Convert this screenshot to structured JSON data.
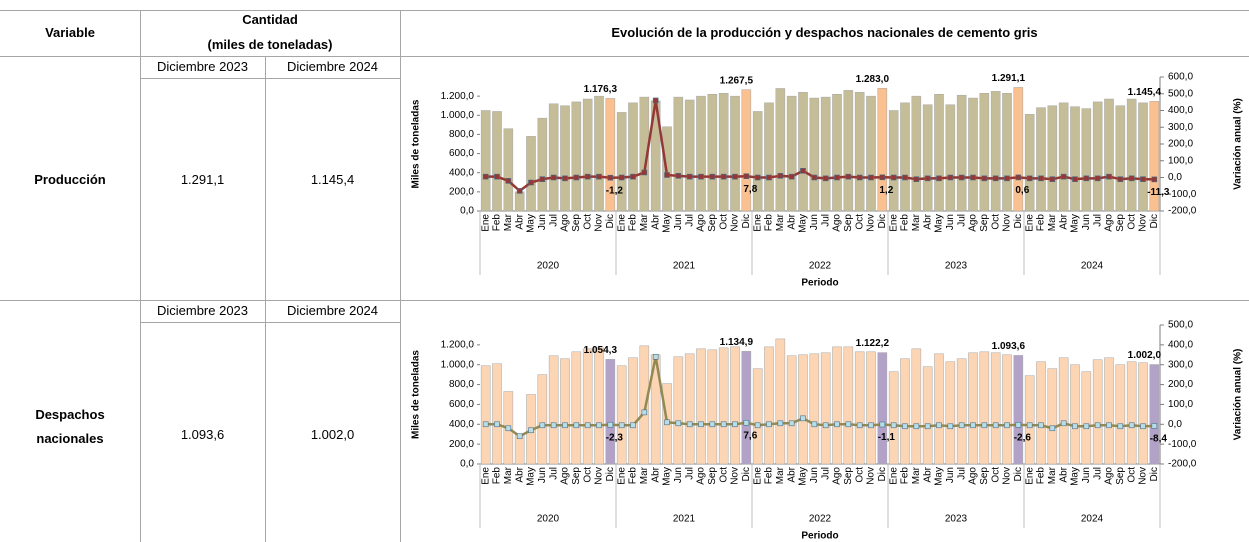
{
  "table": {
    "headers": {
      "variable": "Variable",
      "quantity": "Cantidad",
      "quantity_unit": "(miles de toneladas)",
      "chart": "Evolución de la producción y despachos nacionales de cemento gris"
    },
    "rows": [
      {
        "variable": "Producción",
        "period1": "Diciembre 2023",
        "period2": "Diciembre 2024",
        "value1": "1.291,1",
        "value2": "1.145,4"
      },
      {
        "variable": "Despachos nacionales",
        "period1": "Diciembre 2023",
        "period2": "Diciembre 2024",
        "value1": "1.093,6",
        "value2": "1.002,0"
      }
    ]
  },
  "chart_data": [
    {
      "type": "combo",
      "categories": [
        "Ene",
        "Feb",
        "Mar",
        "Abr",
        "May",
        "Jun",
        "Jul",
        "Ago",
        "Sep",
        "Oct",
        "Nov",
        "Dic",
        "Ene",
        "Feb",
        "Mar",
        "Abr",
        "May",
        "Jun",
        "Jul",
        "Ago",
        "Sep",
        "Oct",
        "Nov",
        "Dic",
        "Ene",
        "Feb",
        "Mar",
        "Abr",
        "May",
        "Jun",
        "Jul",
        "Ago",
        "Sep",
        "Oct",
        "Nov",
        "Dic",
        "Ene",
        "Feb",
        "Mar",
        "Abr",
        "May",
        "Jun",
        "Jul",
        "Ago",
        "Sep",
        "Oct",
        "Nov",
        "Dic",
        "Ene",
        "Feb",
        "Mar",
        "Abr",
        "May",
        "Jun",
        "Jul",
        "Ago",
        "Sep",
        "Oct",
        "Nov",
        "Dic"
      ],
      "groups": [
        "2020",
        "2021",
        "2022",
        "2023",
        "2024"
      ],
      "xlabel": "Periodo",
      "ylabel": "Miles de toneladas",
      "y2label": "Variación anual (%)",
      "ylim": [
        0,
        1400
      ],
      "yticks": [
        {
          "value": 0,
          "label": "0,0"
        },
        {
          "value": 200,
          "label": "200,0"
        },
        {
          "value": 400,
          "label": "400,0"
        },
        {
          "value": 600,
          "label": "600,0"
        },
        {
          "value": 800,
          "label": "800,0"
        },
        {
          "value": 1000,
          "label": "1.000,0"
        },
        {
          "value": 1200,
          "label": "1.200,0"
        }
      ],
      "y2lim": [
        -200,
        600
      ],
      "y2ticks": [
        {
          "value": -200,
          "label": "-200,0"
        },
        {
          "value": -100,
          "label": "-100,0"
        },
        {
          "value": 0,
          "label": "0,0"
        },
        {
          "value": 100,
          "label": "100,0"
        },
        {
          "value": 200,
          "label": "200,0"
        },
        {
          "value": 300,
          "label": "300,0"
        },
        {
          "value": 400,
          "label": "400,0"
        },
        {
          "value": 500,
          "label": "500,0"
        },
        {
          "value": 600,
          "label": "600,0"
        }
      ],
      "series": [
        {
          "type": "bar",
          "color": "#c4bd97",
          "highlight_color": "#fac090",
          "values": [
            1050,
            1040,
            860,
            200,
            780,
            970,
            1120,
            1100,
            1140,
            1170,
            1200,
            1176.3,
            1030,
            1130,
            1190,
            1150,
            880,
            1190,
            1160,
            1200,
            1220,
            1230,
            1200,
            1267.5,
            1040,
            1130,
            1280,
            1200,
            1240,
            1180,
            1190,
            1220,
            1260,
            1240,
            1200,
            1283.0,
            1050,
            1130,
            1200,
            1110,
            1220,
            1110,
            1210,
            1180,
            1230,
            1250,
            1230,
            1291.1,
            1010,
            1080,
            1100,
            1130,
            1090,
            1070,
            1140,
            1170,
            1100,
            1170,
            1130,
            1145.4
          ],
          "value_labels": [
            null,
            null,
            null,
            null,
            null,
            null,
            null,
            null,
            null,
            null,
            null,
            "1.176,3",
            null,
            null,
            null,
            null,
            null,
            null,
            null,
            null,
            null,
            null,
            null,
            "1.267,5",
            null,
            null,
            null,
            null,
            null,
            null,
            null,
            null,
            null,
            null,
            null,
            "1.283,0",
            null,
            null,
            null,
            null,
            null,
            null,
            null,
            null,
            null,
            null,
            null,
            "1.291,1",
            null,
            null,
            null,
            null,
            null,
            null,
            null,
            null,
            null,
            null,
            null,
            "1.145,4"
          ]
        },
        {
          "type": "line",
          "axis": "y2",
          "color": "#953735",
          "marker_color": "#953735",
          "values": [
            5,
            5,
            -20,
            -80,
            -30,
            -10,
            0,
            -5,
            0,
            5,
            5,
            -1.2,
            0,
            5,
            30,
            460,
            15,
            10,
            5,
            5,
            5,
            5,
            5,
            7.8,
            0,
            0,
            10,
            5,
            40,
            0,
            -5,
            0,
            5,
            0,
            0,
            1.2,
            0,
            0,
            -10,
            -5,
            -5,
            0,
            0,
            0,
            -5,
            -5,
            -5,
            0.6,
            -5,
            -5,
            -10,
            5,
            -10,
            -5,
            -5,
            5,
            -10,
            -5,
            -10,
            -11.3
          ],
          "value_labels": [
            null,
            null,
            null,
            null,
            null,
            null,
            null,
            null,
            null,
            null,
            null,
            "-1,2",
            null,
            null,
            null,
            null,
            null,
            null,
            null,
            null,
            null,
            null,
            null,
            "7,8",
            null,
            null,
            null,
            null,
            null,
            null,
            null,
            null,
            null,
            null,
            null,
            "1,2",
            null,
            null,
            null,
            null,
            null,
            null,
            null,
            null,
            null,
            null,
            null,
            "0,6",
            null,
            null,
            null,
            null,
            null,
            null,
            null,
            null,
            null,
            null,
            null,
            "-11,3"
          ]
        }
      ]
    },
    {
      "type": "combo",
      "categories": [
        "Ene",
        "Feb",
        "Mar",
        "Abr",
        "May",
        "Jun",
        "Jul",
        "Ago",
        "Sep",
        "Oct",
        "Nov",
        "Dic",
        "Ene",
        "Feb",
        "Mar",
        "Abr",
        "May",
        "Jun",
        "Jul",
        "Ago",
        "Sep",
        "Oct",
        "Nov",
        "Dic",
        "Ene",
        "Feb",
        "Mar",
        "Abr",
        "May",
        "Jun",
        "Jul",
        "Ago",
        "Sep",
        "Oct",
        "Nov",
        "Dic",
        "Ene",
        "Feb",
        "Mar",
        "Abr",
        "May",
        "Jun",
        "Jul",
        "Ago",
        "Sep",
        "Oct",
        "Nov",
        "Dic",
        "Ene",
        "Feb",
        "Mar",
        "Abr",
        "May",
        "Jun",
        "Jul",
        "Ago",
        "Sep",
        "Oct",
        "Nov",
        "Dic"
      ],
      "groups": [
        "2020",
        "2021",
        "2022",
        "2023",
        "2024"
      ],
      "xlabel": "Periodo",
      "ylabel": "Miles de toneladas",
      "y2label": "Variación anual (%)",
      "ylim": [
        0,
        1400
      ],
      "yticks": [
        {
          "value": 0,
          "label": "0,0"
        },
        {
          "value": 200,
          "label": "200,0"
        },
        {
          "value": 400,
          "label": "400,0"
        },
        {
          "value": 600,
          "label": "600,0"
        },
        {
          "value": 800,
          "label": "800,0"
        },
        {
          "value": 1000,
          "label": "1.000,0"
        },
        {
          "value": 1200,
          "label": "1.200,0"
        }
      ],
      "y2lim": [
        -200,
        500
      ],
      "y2ticks": [
        {
          "value": -200,
          "label": "-200,0"
        },
        {
          "value": -100,
          "label": "-100,0"
        },
        {
          "value": 0,
          "label": "0,0"
        },
        {
          "value": 100,
          "label": "100,0"
        },
        {
          "value": 200,
          "label": "200,0"
        },
        {
          "value": 300,
          "label": "300,0"
        },
        {
          "value": 400,
          "label": "400,0"
        },
        {
          "value": 500,
          "label": "500,0"
        }
      ],
      "series": [
        {
          "type": "bar",
          "color": "#fcd5b5",
          "highlight_color": "#b3a2c7",
          "values": [
            990,
            1010,
            730,
            300,
            700,
            900,
            1090,
            1060,
            1130,
            1160,
            1170,
            1054.3,
            990,
            1070,
            1190,
            1100,
            810,
            1080,
            1110,
            1160,
            1150,
            1170,
            1180,
            1134.9,
            960,
            1180,
            1260,
            1090,
            1100,
            1110,
            1120,
            1180,
            1180,
            1130,
            1130,
            1122.2,
            930,
            1060,
            1160,
            980,
            1110,
            1030,
            1060,
            1120,
            1130,
            1120,
            1100,
            1093.6,
            890,
            1030,
            960,
            1070,
            1000,
            930,
            1050,
            1070,
            1000,
            1030,
            1020,
            1002.0
          ],
          "value_labels": [
            null,
            null,
            null,
            null,
            null,
            null,
            null,
            null,
            null,
            null,
            null,
            "1.054,3",
            null,
            null,
            null,
            null,
            null,
            null,
            null,
            null,
            null,
            null,
            null,
            "1.134,9",
            null,
            null,
            null,
            null,
            null,
            null,
            null,
            null,
            null,
            null,
            null,
            "1.122,2",
            null,
            null,
            null,
            null,
            null,
            null,
            null,
            null,
            null,
            null,
            null,
            "1.093,6",
            null,
            null,
            null,
            null,
            null,
            null,
            null,
            null,
            null,
            null,
            null,
            "1.002,0"
          ]
        },
        {
          "type": "line",
          "axis": "y2",
          "color": "#938953",
          "marker_color": "#b7dee8",
          "values": [
            0,
            0,
            -20,
            -60,
            -30,
            -5,
            -5,
            -5,
            -5,
            -5,
            -5,
            -2.3,
            -5,
            -5,
            60,
            340,
            10,
            5,
            0,
            0,
            0,
            0,
            0,
            7.6,
            -5,
            0,
            5,
            5,
            30,
            0,
            -5,
            0,
            0,
            -5,
            -5,
            -1.1,
            -5,
            -10,
            -10,
            -10,
            -5,
            -10,
            -5,
            -5,
            -5,
            -5,
            -5,
            -2.6,
            -5,
            -5,
            -20,
            5,
            -10,
            -10,
            -5,
            -5,
            -10,
            -5,
            -10,
            -8.4
          ],
          "value_labels": [
            null,
            null,
            null,
            null,
            null,
            null,
            null,
            null,
            null,
            null,
            null,
            "-2,3",
            null,
            null,
            null,
            null,
            null,
            null,
            null,
            null,
            null,
            null,
            null,
            "7,6",
            null,
            null,
            null,
            null,
            null,
            null,
            null,
            null,
            null,
            null,
            null,
            "-1,1",
            null,
            null,
            null,
            null,
            null,
            null,
            null,
            null,
            null,
            null,
            null,
            "-2,6",
            null,
            null,
            null,
            null,
            null,
            null,
            null,
            null,
            null,
            null,
            null,
            "-8,4"
          ]
        }
      ]
    }
  ]
}
